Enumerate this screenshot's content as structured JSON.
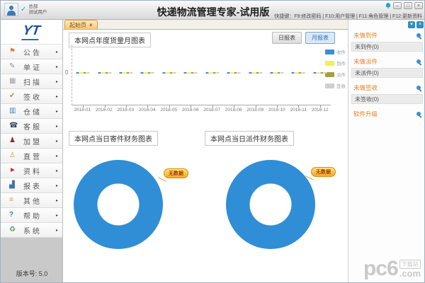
{
  "window": {
    "title": "快递物流管理专家-试用版",
    "user_org": "总部",
    "user_name": "测试用户",
    "user_check": "✓",
    "hotkeys": "快捷键：F9:修改密码 | F10:用户管理 | F11:角色管理 | F12:更新资料",
    "controls": {
      "minimize": "–",
      "maximize": "□",
      "close": "×"
    }
  },
  "sidebar": {
    "logo": "YT",
    "arrow": "▸",
    "items": [
      {
        "label": "公告",
        "icon": "megaphone-icon",
        "glyph": "⚑"
      },
      {
        "label": "单证",
        "icon": "document-icon",
        "glyph": "✎"
      },
      {
        "label": "扫描",
        "icon": "scan-icon",
        "glyph": "▦"
      },
      {
        "label": "签收",
        "icon": "sign-receipt-icon",
        "glyph": "✔"
      },
      {
        "label": "仓储",
        "icon": "warehouse-icon",
        "glyph": "▥"
      },
      {
        "label": "客服",
        "icon": "customer-service-icon",
        "glyph": "☎"
      },
      {
        "label": "加盟",
        "icon": "franchise-icon",
        "glyph": "♟"
      },
      {
        "label": "直营",
        "icon": "direct-branch-icon",
        "glyph": "♙"
      },
      {
        "label": "资料",
        "icon": "data-icon",
        "glyph": "►"
      },
      {
        "label": "报表",
        "icon": "report-icon",
        "glyph": "▟"
      },
      {
        "label": "其他",
        "icon": "other-icon",
        "glyph": "≡"
      },
      {
        "label": "帮助",
        "icon": "help-icon",
        "glyph": "?"
      },
      {
        "label": "系统",
        "icon": "system-icon",
        "glyph": "♻"
      }
    ],
    "version": "版本号: 5.0"
  },
  "tabs": [
    {
      "label": "起始页",
      "close": "×"
    }
  ],
  "main": {
    "monthly_panel": {
      "title": "本网点年度货量月图表",
      "buttons": {
        "daily": "日报表",
        "monthly": "月报表"
      },
      "legend": [
        {
          "label": "收件",
          "color": "#3a8fd0"
        },
        {
          "label": "到件",
          "color": "#f2ee55"
        },
        {
          "label": "派件",
          "color": "#a3a23b"
        },
        {
          "label": "签收",
          "color": "#cfcfcf"
        }
      ],
      "y_zero": "0",
      "months": [
        "2018-01",
        "2018-02",
        "2018-03",
        "2018-04",
        "2018-05",
        "2018-06",
        "2018-07",
        "2018-08",
        "2018-09",
        "2018-10",
        "2018-11",
        "2018-12"
      ]
    },
    "send_panel": {
      "title": "本网点当日寄件财务图表",
      "tooltip": "无数据",
      "donut_color": "#2f8ed5"
    },
    "dispatch_panel": {
      "title": "本网点当日派件财务图表",
      "tooltip": "无数据",
      "donut_color": "#2f8ed5"
    }
  },
  "right_panel": {
    "collapse_glyph": "▾",
    "close_glyph": "×",
    "sections": [
      {
        "header": "未做到件",
        "item": "未到件(0)"
      },
      {
        "header": "未做派件",
        "item": "未派件(0)"
      },
      {
        "header": "未做签收",
        "item": "未签收(0)"
      },
      {
        "header": "软件升级",
        "item": ""
      }
    ]
  },
  "watermark": {
    "text": "pc6",
    "badge": "下载站",
    "suffix": ".com"
  },
  "chart_data": [
    {
      "type": "bar",
      "title": "本网点年度货量月图表",
      "categories": [
        "2018-01",
        "2018-02",
        "2018-03",
        "2018-04",
        "2018-05",
        "2018-06",
        "2018-07",
        "2018-08",
        "2018-09",
        "2018-10",
        "2018-11",
        "2018-12"
      ],
      "series": [
        {
          "name": "收件",
          "color": "#3a8fd0",
          "values": [
            0,
            0,
            0,
            0,
            0,
            0,
            0,
            0,
            0,
            0,
            0,
            0
          ]
        },
        {
          "name": "到件",
          "color": "#f2ee55",
          "values": [
            0,
            0,
            0,
            0,
            0,
            0,
            0,
            0,
            0,
            0,
            0,
            0
          ]
        },
        {
          "name": "派件",
          "color": "#a3a23b",
          "values": [
            0,
            0,
            0,
            0,
            0,
            0,
            0,
            0,
            0,
            0,
            0,
            0
          ]
        },
        {
          "name": "签收",
          "color": "#cfcfcf",
          "values": [
            0,
            0,
            0,
            0,
            0,
            0,
            0,
            0,
            0,
            0,
            0,
            0
          ]
        }
      ],
      "xlabel": "",
      "ylabel": "",
      "y_ticks": [
        "0"
      ],
      "grid": false,
      "legend_position": "right"
    },
    {
      "type": "pie",
      "title": "本网点当日寄件财务图表",
      "labels": [
        "无数据"
      ],
      "values": [
        100
      ],
      "colors": [
        "#2f8ed5"
      ],
      "annotation": "无数据",
      "donut": true
    },
    {
      "type": "pie",
      "title": "本网点当日派件财务图表",
      "labels": [
        "无数据"
      ],
      "values": [
        100
      ],
      "colors": [
        "#2f8ed5"
      ],
      "annotation": "无数据",
      "donut": true
    }
  ]
}
